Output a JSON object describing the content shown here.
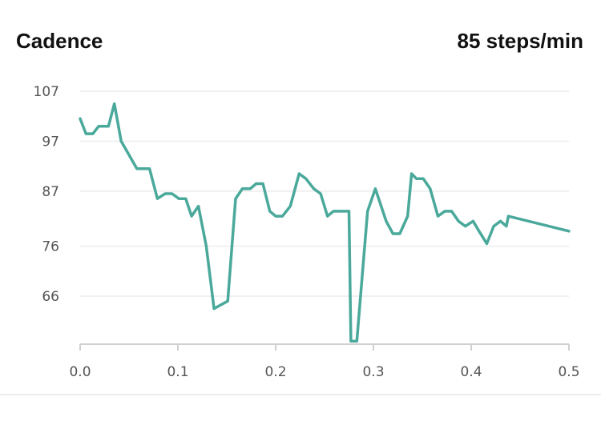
{
  "header": {
    "title": "Cadence",
    "value": "85 steps/min"
  },
  "colors": {
    "line": "#4aa99b",
    "grid": "#f0f0f0",
    "axis": "#d0d0d0",
    "tick_text": "#555555"
  },
  "chart_data": {
    "type": "line",
    "title": "Cadence",
    "xlabel": "",
    "ylabel": "",
    "xlim": [
      0.0,
      0.5
    ],
    "ylim": [
      54.5,
      107
    ],
    "x_ticks": [
      "0.0",
      "0.1",
      "0.2",
      "0.3",
      "0.4",
      "0.5"
    ],
    "x_tick_values": [
      0.0,
      0.1,
      0.2,
      0.3,
      0.4,
      0.5
    ],
    "y_ticks": [
      "107",
      "97",
      "87",
      "76",
      "66"
    ],
    "y_tick_values": [
      107,
      97,
      87,
      76,
      66
    ],
    "grid": "horizontal",
    "series": [
      {
        "points": [
          [
            0.0,
            101.5
          ],
          [
            0.006,
            98.5
          ],
          [
            0.013,
            98.5
          ],
          [
            0.019,
            100.0
          ],
          [
            0.029,
            100.0
          ],
          [
            0.035,
            104.5
          ],
          [
            0.042,
            97.0
          ],
          [
            0.058,
            91.5
          ],
          [
            0.071,
            91.5
          ],
          [
            0.079,
            85.5
          ],
          [
            0.087,
            86.5
          ],
          [
            0.094,
            86.5
          ],
          [
            0.101,
            85.5
          ],
          [
            0.108,
            85.5
          ],
          [
            0.114,
            82.0
          ],
          [
            0.121,
            84.0
          ],
          [
            0.129,
            76.0
          ],
          [
            0.137,
            63.5
          ],
          [
            0.151,
            65.0
          ],
          [
            0.159,
            85.5
          ],
          [
            0.166,
            87.5
          ],
          [
            0.174,
            87.5
          ],
          [
            0.18,
            88.5
          ],
          [
            0.187,
            88.5
          ],
          [
            0.194,
            83.0
          ],
          [
            0.2,
            82.0
          ],
          [
            0.207,
            82.0
          ],
          [
            0.215,
            84.0
          ],
          [
            0.224,
            90.5
          ],
          [
            0.231,
            89.5
          ],
          [
            0.239,
            87.5
          ],
          [
            0.246,
            86.5
          ],
          [
            0.253,
            82.0
          ],
          [
            0.259,
            83.0
          ],
          [
            0.275,
            83.0
          ],
          [
            0.277,
            57.0
          ],
          [
            0.283,
            57.0
          ],
          [
            0.294,
            83.0
          ],
          [
            0.302,
            87.5
          ],
          [
            0.313,
            81.0
          ],
          [
            0.32,
            78.5
          ],
          [
            0.327,
            78.5
          ],
          [
            0.335,
            82.0
          ],
          [
            0.339,
            90.5
          ],
          [
            0.344,
            89.5
          ],
          [
            0.351,
            89.5
          ],
          [
            0.358,
            87.5
          ],
          [
            0.366,
            82.0
          ],
          [
            0.373,
            83.0
          ],
          [
            0.38,
            83.0
          ],
          [
            0.387,
            81.0
          ],
          [
            0.394,
            80.0
          ],
          [
            0.402,
            81.0
          ],
          [
            0.408,
            79.0
          ],
          [
            0.416,
            76.5
          ],
          [
            0.423,
            80.0
          ],
          [
            0.43,
            81.0
          ],
          [
            0.436,
            80.0
          ],
          [
            0.438,
            82.0
          ],
          [
            0.5,
            79.0
          ]
        ]
      }
    ]
  }
}
